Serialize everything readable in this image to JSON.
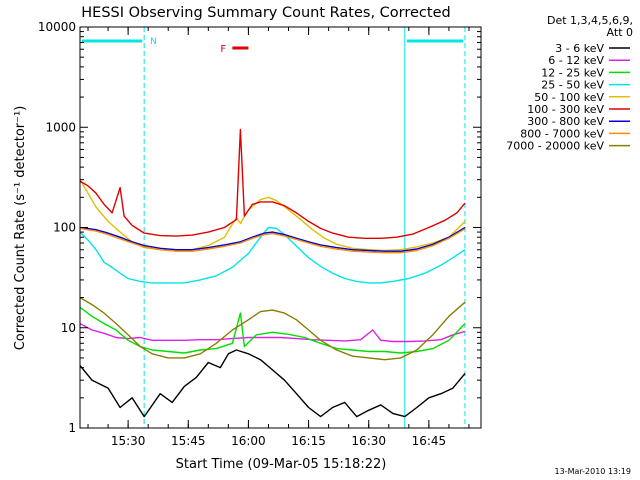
{
  "chart_data": {
    "type": "line",
    "title": "HESSI Observing Summary Count Rates, Corrected",
    "ylabel": "Corrected Count Rate (s⁻¹ detector⁻¹)",
    "xlabel": "Start Time (09-Mar-05 15:18:22)",
    "y_scale": "log",
    "ylim": [
      1,
      10000
    ],
    "xlim": [
      "15:18",
      "16:58"
    ],
    "grid": false,
    "legend_position": "right",
    "legend_header": [
      "Det 1,3,4,5,6,9,",
      "Att 0"
    ],
    "x_ticks": [
      "15:30",
      "15:45",
      "16:00",
      "16:15",
      "16:30",
      "16:45"
    ],
    "y_ticks": [
      "1",
      "10",
      "100",
      "1000",
      "10000"
    ],
    "timestamp": "13-Mar-2010 13:19",
    "annotations": [
      {
        "label": "N",
        "type": "night",
        "start": "15:18",
        "end": "15:34",
        "color": "#00e5e5"
      },
      {
        "label": "",
        "type": "night",
        "start": "16:39",
        "end": "16:54",
        "color": "#00e5e5"
      },
      {
        "label": "F",
        "type": "flare",
        "start": "15:56",
        "end": "16:00",
        "color": "#e00000"
      }
    ],
    "series": [
      {
        "name": "3 - 6 keV",
        "color": "#000000",
        "points": [
          [
            "15:18",
            4.2
          ],
          [
            "15:21",
            3.0
          ],
          [
            "15:25",
            2.5
          ],
          [
            "15:28",
            1.6
          ],
          [
            "15:31",
            2.0
          ],
          [
            "15:34",
            1.3
          ],
          [
            "15:38",
            2.2
          ],
          [
            "15:41",
            1.8
          ],
          [
            "15:44",
            2.6
          ],
          [
            "15:47",
            3.2
          ],
          [
            "15:50",
            4.5
          ],
          [
            "15:53",
            4.0
          ],
          [
            "15:55",
            5.5
          ],
          [
            "15:57",
            6.0
          ],
          [
            "16:00",
            5.5
          ],
          [
            "16:03",
            4.8
          ],
          [
            "16:06",
            3.8
          ],
          [
            "16:09",
            3.0
          ],
          [
            "16:12",
            2.2
          ],
          [
            "16:15",
            1.6
          ],
          [
            "16:18",
            1.3
          ],
          [
            "16:21",
            1.6
          ],
          [
            "16:24",
            1.8
          ],
          [
            "16:27",
            1.3
          ],
          [
            "16:30",
            1.5
          ],
          [
            "16:33",
            1.7
          ],
          [
            "16:36",
            1.4
          ],
          [
            "16:39",
            1.3
          ],
          [
            "16:42",
            1.6
          ],
          [
            "16:45",
            2.0
          ],
          [
            "16:48",
            2.2
          ],
          [
            "16:51",
            2.5
          ],
          [
            "16:54",
            3.5
          ]
        ]
      },
      {
        "name": "6 - 12 keV",
        "color": "#e020e0",
        "points": [
          [
            "15:18",
            11
          ],
          [
            "15:21",
            9.5
          ],
          [
            "15:24",
            8.8
          ],
          [
            "15:27",
            8.0
          ],
          [
            "15:30",
            7.8
          ],
          [
            "15:33",
            8.0
          ],
          [
            "15:36",
            7.5
          ],
          [
            "15:40",
            7.5
          ],
          [
            "15:44",
            7.5
          ],
          [
            "15:48",
            7.6
          ],
          [
            "15:52",
            7.6
          ],
          [
            "15:56",
            7.8
          ],
          [
            "16:00",
            8.0
          ],
          [
            "16:04",
            8.0
          ],
          [
            "16:08",
            8.0
          ],
          [
            "16:12",
            7.8
          ],
          [
            "16:16",
            7.6
          ],
          [
            "16:20",
            7.5
          ],
          [
            "16:24",
            7.4
          ],
          [
            "16:28",
            7.6
          ],
          [
            "16:31",
            9.5
          ],
          [
            "16:33",
            7.5
          ],
          [
            "16:36",
            7.3
          ],
          [
            "16:40",
            7.3
          ],
          [
            "16:44",
            7.4
          ],
          [
            "16:48",
            7.6
          ],
          [
            "16:51",
            8.5
          ],
          [
            "16:54",
            9.2
          ]
        ]
      },
      {
        "name": "12 - 25 keV",
        "color": "#00e000",
        "points": [
          [
            "15:18",
            16
          ],
          [
            "15:21",
            13
          ],
          [
            "15:24",
            11
          ],
          [
            "15:27",
            9.5
          ],
          [
            "15:30",
            7.5
          ],
          [
            "15:33",
            6.5
          ],
          [
            "15:36",
            6.0
          ],
          [
            "15:40",
            5.8
          ],
          [
            "15:44",
            5.6
          ],
          [
            "15:48",
            6.0
          ],
          [
            "15:52",
            6.2
          ],
          [
            "15:56",
            7.0
          ],
          [
            "15:58",
            14
          ],
          [
            "15:59",
            6.5
          ],
          [
            "16:02",
            8.5
          ],
          [
            "16:06",
            9.0
          ],
          [
            "16:10",
            8.6
          ],
          [
            "16:14",
            8.0
          ],
          [
            "16:18",
            7.0
          ],
          [
            "16:22",
            6.2
          ],
          [
            "16:26",
            6.0
          ],
          [
            "16:30",
            5.8
          ],
          [
            "16:34",
            5.8
          ],
          [
            "16:38",
            5.6
          ],
          [
            "16:42",
            5.8
          ],
          [
            "16:46",
            6.2
          ],
          [
            "16:50",
            7.5
          ],
          [
            "16:54",
            11
          ]
        ]
      },
      {
        "name": "25 - 50 keV",
        "color": "#00e5e5",
        "points": [
          [
            "15:18",
            90
          ],
          [
            "15:20",
            75
          ],
          [
            "15:22",
            60
          ],
          [
            "15:24",
            45
          ],
          [
            "15:26",
            40
          ],
          [
            "15:28",
            35
          ],
          [
            "15:30",
            31
          ],
          [
            "15:33",
            29
          ],
          [
            "15:36",
            28
          ],
          [
            "15:40",
            28
          ],
          [
            "15:44",
            28
          ],
          [
            "15:48",
            30
          ],
          [
            "15:52",
            33
          ],
          [
            "15:56",
            40
          ],
          [
            "16:00",
            55
          ],
          [
            "16:03",
            80
          ],
          [
            "16:05",
            100
          ],
          [
            "16:07",
            98
          ],
          [
            "16:09",
            85
          ],
          [
            "16:12",
            65
          ],
          [
            "16:15",
            50
          ],
          [
            "16:18",
            41
          ],
          [
            "16:21",
            35
          ],
          [
            "16:24",
            31
          ],
          [
            "16:27",
            29
          ],
          [
            "16:30",
            28
          ],
          [
            "16:33",
            28
          ],
          [
            "16:36",
            29
          ],
          [
            "16:40",
            31
          ],
          [
            "16:44",
            35
          ],
          [
            "16:48",
            42
          ],
          [
            "16:51",
            50
          ],
          [
            "16:54",
            60
          ]
        ]
      },
      {
        "name": "50 - 100 keV",
        "color": "#e0c000",
        "points": [
          [
            "15:18",
            300
          ],
          [
            "15:20",
            220
          ],
          [
            "15:22",
            160
          ],
          [
            "15:25",
            115
          ],
          [
            "15:28",
            90
          ],
          [
            "15:31",
            72
          ],
          [
            "15:34",
            63
          ],
          [
            "15:38",
            60
          ],
          [
            "15:42",
            59
          ],
          [
            "15:46",
            60
          ],
          [
            "15:50",
            66
          ],
          [
            "15:54",
            80
          ],
          [
            "15:57",
            125
          ],
          [
            "15:58",
            110
          ],
          [
            "16:00",
            150
          ],
          [
            "16:03",
            190
          ],
          [
            "16:05",
            200
          ],
          [
            "16:07",
            185
          ],
          [
            "16:10",
            150
          ],
          [
            "16:13",
            120
          ],
          [
            "16:16",
            95
          ],
          [
            "16:19",
            78
          ],
          [
            "16:22",
            68
          ],
          [
            "16:26",
            62
          ],
          [
            "16:30",
            60
          ],
          [
            "16:34",
            59
          ],
          [
            "16:38",
            60
          ],
          [
            "16:42",
            64
          ],
          [
            "16:46",
            70
          ],
          [
            "16:50",
            80
          ],
          [
            "16:54",
            115
          ]
        ]
      },
      {
        "name": "100 - 300 keV",
        "color": "#e00000",
        "points": [
          [
            "15:18",
            290
          ],
          [
            "15:20",
            260
          ],
          [
            "15:22",
            220
          ],
          [
            "15:24",
            170
          ],
          [
            "15:26",
            140
          ],
          [
            "15:28",
            250
          ],
          [
            "15:29",
            130
          ],
          [
            "15:31",
            105
          ],
          [
            "15:34",
            88
          ],
          [
            "15:38",
            83
          ],
          [
            "15:42",
            82
          ],
          [
            "15:46",
            84
          ],
          [
            "15:50",
            90
          ],
          [
            "15:54",
            100
          ],
          [
            "15:57",
            120
          ],
          [
            "15:58",
            950
          ],
          [
            "15:59",
            130
          ],
          [
            "16:01",
            170
          ],
          [
            "16:03",
            180
          ],
          [
            "16:06",
            180
          ],
          [
            "16:09",
            165
          ],
          [
            "16:12",
            140
          ],
          [
            "16:15",
            115
          ],
          [
            "16:18",
            98
          ],
          [
            "16:21",
            88
          ],
          [
            "16:25",
            80
          ],
          [
            "16:29",
            78
          ],
          [
            "16:33",
            78
          ],
          [
            "16:37",
            80
          ],
          [
            "16:41",
            86
          ],
          [
            "16:45",
            100
          ],
          [
            "16:49",
            118
          ],
          [
            "16:52",
            140
          ],
          [
            "16:54",
            175
          ]
        ]
      },
      {
        "name": "300 - 800 keV",
        "color": "#0000e0",
        "points": [
          [
            "15:18",
            100
          ],
          [
            "15:22",
            95
          ],
          [
            "15:25",
            88
          ],
          [
            "15:28",
            80
          ],
          [
            "15:31",
            72
          ],
          [
            "15:34",
            66
          ],
          [
            "15:38",
            62
          ],
          [
            "15:42",
            60
          ],
          [
            "15:46",
            60
          ],
          [
            "15:50",
            63
          ],
          [
            "15:54",
            67
          ],
          [
            "15:58",
            72
          ],
          [
            "16:01",
            80
          ],
          [
            "16:04",
            88
          ],
          [
            "16:06",
            90
          ],
          [
            "16:09",
            85
          ],
          [
            "16:12",
            78
          ],
          [
            "16:15",
            72
          ],
          [
            "16:18",
            67
          ],
          [
            "16:22",
            63
          ],
          [
            "16:26",
            60
          ],
          [
            "16:30",
            59
          ],
          [
            "16:34",
            58
          ],
          [
            "16:38",
            58
          ],
          [
            "16:42",
            61
          ],
          [
            "16:46",
            68
          ],
          [
            "16:50",
            80
          ],
          [
            "16:54",
            100
          ]
        ]
      },
      {
        "name": "800 - 7000 keV",
        "color": "#ff8c00",
        "points": [
          [
            "15:18",
            98
          ],
          [
            "15:22",
            92
          ],
          [
            "15:25",
            85
          ],
          [
            "15:28",
            77
          ],
          [
            "15:31",
            70
          ],
          [
            "15:34",
            64
          ],
          [
            "15:38",
            60
          ],
          [
            "15:42",
            58
          ],
          [
            "15:46",
            58
          ],
          [
            "15:50",
            61
          ],
          [
            "15:54",
            65
          ],
          [
            "15:58",
            70
          ],
          [
            "16:01",
            78
          ],
          [
            "16:04",
            85
          ],
          [
            "16:06",
            87
          ],
          [
            "16:09",
            82
          ],
          [
            "16:12",
            76
          ],
          [
            "16:15",
            70
          ],
          [
            "16:18",
            65
          ],
          [
            "16:22",
            61
          ],
          [
            "16:26",
            58
          ],
          [
            "16:30",
            57
          ],
          [
            "16:34",
            56
          ],
          [
            "16:38",
            56
          ],
          [
            "16:42",
            59
          ],
          [
            "16:46",
            66
          ],
          [
            "16:50",
            78
          ],
          [
            "16:54",
            97
          ]
        ]
      },
      {
        "name": "7000 - 20000 keV",
        "color": "#8b7d00",
        "points": [
          [
            "15:18",
            20
          ],
          [
            "15:21",
            17
          ],
          [
            "15:24",
            14
          ],
          [
            "15:27",
            11
          ],
          [
            "15:30",
            8.5
          ],
          [
            "15:33",
            6.5
          ],
          [
            "15:36",
            5.5
          ],
          [
            "15:40",
            5.0
          ],
          [
            "15:44",
            5.0
          ],
          [
            "15:48",
            5.5
          ],
          [
            "15:52",
            7.0
          ],
          [
            "15:56",
            9.5
          ],
          [
            "16:00",
            12
          ],
          [
            "16:03",
            14.5
          ],
          [
            "16:06",
            15
          ],
          [
            "16:09",
            14
          ],
          [
            "16:12",
            12
          ],
          [
            "16:15",
            9.5
          ],
          [
            "16:18",
            7.5
          ],
          [
            "16:22",
            6.0
          ],
          [
            "16:26",
            5.2
          ],
          [
            "16:30",
            5.0
          ],
          [
            "16:34",
            4.8
          ],
          [
            "16:38",
            5.0
          ],
          [
            "16:42",
            6.0
          ],
          [
            "16:46",
            8.5
          ],
          [
            "16:50",
            13
          ],
          [
            "16:54",
            18
          ]
        ]
      }
    ]
  }
}
